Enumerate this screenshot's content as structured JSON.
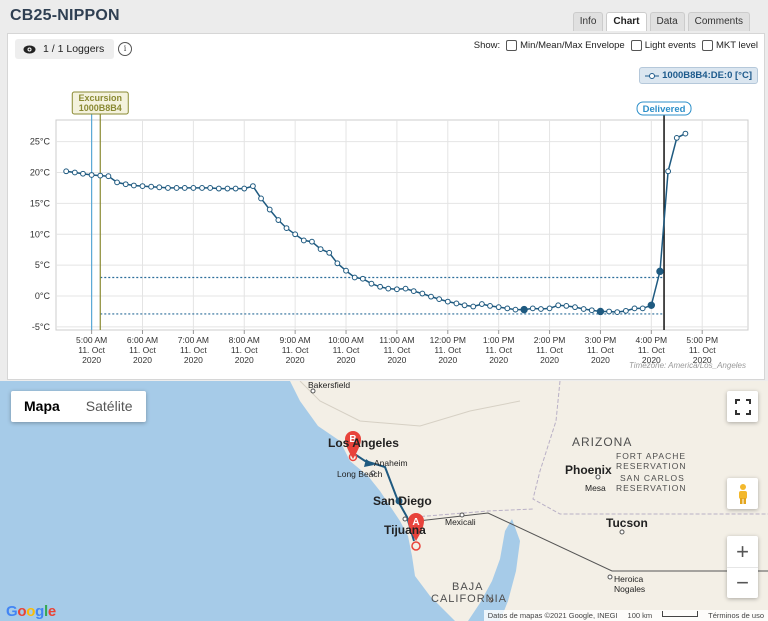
{
  "app": {
    "title": "CB25-NIPPON",
    "tabs": [
      "Info",
      "Chart",
      "Data",
      "Comments"
    ],
    "active_tab": "Chart"
  },
  "toolbar": {
    "loggers_label": "1 / 1 Loggers",
    "show_label": "Show:",
    "options": [
      "Min/Mean/Max Envelope",
      "Light events",
      "MKT level"
    ],
    "series_badge": "1000B8B4:DE:0 [°C]"
  },
  "chart_data": {
    "type": "line",
    "title": "",
    "xlabel": "",
    "ylabel": "",
    "ylim": [
      -5.5,
      28.5
    ],
    "yticks": [
      "25°C",
      "20°C",
      "15°C",
      "10°C",
      "5°C",
      "0°C",
      "-5°C"
    ],
    "ytick_values": [
      25,
      20,
      15,
      10,
      5,
      0,
      -5
    ],
    "xticks": [
      [
        "5:00 AM",
        "11. Oct",
        "2020"
      ],
      [
        "6:00 AM",
        "11. Oct",
        "2020"
      ],
      [
        "7:00 AM",
        "11. Oct",
        "2020"
      ],
      [
        "8:00 AM",
        "11. Oct",
        "2020"
      ],
      [
        "9:00 AM",
        "11. Oct",
        "2020"
      ],
      [
        "10:00 AM",
        "11. Oct",
        "2020"
      ],
      [
        "11:00 AM",
        "11. Oct",
        "2020"
      ],
      [
        "12:00 PM",
        "11. Oct",
        "2020"
      ],
      [
        "1:00 PM",
        "11. Oct",
        "2020"
      ],
      [
        "2:00 PM",
        "11. Oct",
        "2020"
      ],
      [
        "3:00 PM",
        "11. Oct",
        "2020"
      ],
      [
        "4:00 PM",
        "11. Oct",
        "2020"
      ],
      [
        "5:00 PM",
        "11. Oct",
        "2020"
      ]
    ],
    "xtick_hours": [
      5,
      6,
      7,
      8,
      9,
      10,
      11,
      12,
      13,
      14,
      15,
      16,
      17
    ],
    "xlim_hours": [
      4.3,
      17.9
    ],
    "series": [
      {
        "name": "1000B8B4:DE:0 [°C]",
        "x_hours": [
          4.5,
          4.67,
          4.83,
          5.0,
          5.17,
          5.33,
          5.5,
          5.67,
          5.83,
          6.0,
          6.17,
          6.33,
          6.5,
          6.67,
          6.83,
          7.0,
          7.17,
          7.33,
          7.5,
          7.67,
          7.83,
          8.0,
          8.17,
          8.33,
          8.5,
          8.67,
          8.83,
          9.0,
          9.17,
          9.33,
          9.5,
          9.67,
          9.83,
          10.0,
          10.17,
          10.33,
          10.5,
          10.67,
          10.83,
          11.0,
          11.17,
          11.33,
          11.5,
          11.67,
          11.83,
          12.0,
          12.17,
          12.33,
          12.5,
          12.67,
          12.83,
          13.0,
          13.17,
          13.33,
          13.5,
          13.67,
          13.83,
          14.0,
          14.17,
          14.33,
          14.5,
          14.67,
          14.83,
          15.0,
          15.17,
          15.33,
          15.5,
          15.67,
          15.83,
          16.0,
          16.17,
          16.33,
          16.5,
          16.67
        ],
        "values": [
          20.2,
          20.0,
          19.8,
          19.6,
          19.5,
          19.4,
          18.4,
          18.1,
          17.9,
          17.8,
          17.7,
          17.6,
          17.5,
          17.5,
          17.5,
          17.5,
          17.5,
          17.5,
          17.4,
          17.4,
          17.4,
          17.4,
          17.8,
          15.8,
          14.0,
          12.3,
          11.0,
          10.0,
          9.0,
          8.8,
          7.6,
          7.0,
          5.3,
          4.1,
          3.0,
          2.8,
          2.0,
          1.5,
          1.2,
          1.1,
          1.2,
          0.8,
          0.4,
          -0.1,
          -0.5,
          -0.9,
          -1.2,
          -1.5,
          -1.7,
          -1.3,
          -1.6,
          -1.8,
          -2.0,
          -2.2,
          -2.2,
          -2.0,
          -2.1,
          -2.0,
          -1.5,
          -1.6,
          -1.8,
          -2.1,
          -2.3,
          -2.5,
          -2.5,
          -2.6,
          -2.4,
          -2.0,
          -2.0,
          -1.5,
          4.0,
          20.2,
          25.6,
          26.3
        ]
      }
    ],
    "highlighted_points_hours": [
      13.5,
      15.0,
      16.0,
      16.17
    ],
    "threshold_lines": [
      3.0,
      -2.9
    ],
    "events": [
      {
        "label": "Excursion",
        "sublabel": "1000B8B4",
        "x_hours": 5.17,
        "color": "#8a8a33"
      },
      {
        "label": "Delivered",
        "sublabel": "",
        "x_hours": 16.25,
        "color": "#111111"
      }
    ],
    "start_marker_hours": 5.0,
    "grid": true,
    "legend": "top-right",
    "timezone_note": "Timezone: America/Los_Angeles"
  },
  "map": {
    "buttons": [
      "Mapa",
      "Satélite"
    ],
    "active_button": "Mapa",
    "zoom_in": "+",
    "zoom_out": "−",
    "labels": [
      "Bakersfield",
      "Los Angeles",
      "Anaheim",
      "Long Beach",
      "San Diego",
      "Tijuana",
      "Mexicali",
      "ARIZONA",
      "Phoenix",
      "Mesa",
      "Tucson",
      "FORT APACHE",
      "RESERVATION",
      "SAN CARLOS",
      "RESERVATION",
      "BAJA",
      "CALIFORNIA",
      "Heroica",
      "Nogales"
    ],
    "marker_a": "A",
    "marker_b": "B",
    "brand": "Google",
    "attribution": "Datos de mapas ©2021 Google, INEGI",
    "scale": "100 km",
    "terms": "Términos de uso",
    "colors": {
      "water": "#a6cbe8",
      "land": "#f3efe6",
      "route": "#1f5a80",
      "marker": "#e8433b"
    }
  }
}
